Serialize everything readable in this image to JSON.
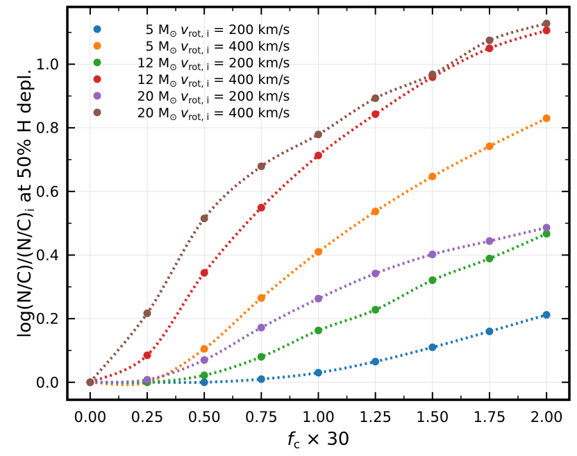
{
  "chart_data": {
    "type": "scatter",
    "x": [
      0.0,
      0.25,
      0.5,
      0.75,
      1.0,
      1.25,
      1.5,
      1.75,
      2.0
    ],
    "xlabel": {
      "base": "f",
      "sub": "c",
      "suffix": "× 30"
    },
    "ylabel": {
      "main": "log(N/C)/(N/C)",
      "sub": "i",
      "suffix": " at 50% H depl."
    },
    "xlim": [
      -0.1,
      2.1
    ],
    "ylim": [
      -0.055,
      1.18
    ],
    "xticks": [
      "0.00",
      "0.25",
      "0.50",
      "0.75",
      "1.00",
      "1.25",
      "1.50",
      "1.75",
      "2.00"
    ],
    "yticks": [
      "0.0",
      "0.2",
      "0.4",
      "0.6",
      "0.8",
      "1.0"
    ],
    "grid": true,
    "legend_position": "top-left",
    "legend_suffix": {
      "sun": "⊙",
      "v": "v",
      "rot": "rot, i",
      "eq": "="
    },
    "series": [
      {
        "name": "5 M⊙ vrot,i = 200 km/s",
        "mass": "5",
        "msun": "M",
        "vel": "200 km/s",
        "color": "#1f77b4",
        "values": [
          0.0,
          0.0,
          0.0,
          0.01,
          0.03,
          0.065,
          0.11,
          0.16,
          0.212
        ]
      },
      {
        "name": "5 M⊙ vrot,i = 400 km/s",
        "mass": "5",
        "msun": "M",
        "vel": "400 km/s",
        "color": "#ff7f0e",
        "values": [
          0.0,
          0.0,
          0.105,
          0.265,
          0.41,
          0.537,
          0.647,
          0.742,
          0.83
        ]
      },
      {
        "name": "12 M⊙ vrot,i = 200 km/s",
        "mass": "12",
        "msun": "M",
        "vel": "200 km/s",
        "color": "#2ca02c",
        "values": [
          0.0,
          0.0,
          0.022,
          0.08,
          0.163,
          0.228,
          0.321,
          0.389,
          0.467
        ]
      },
      {
        "name": "12 M⊙ vrot,i = 400 km/s",
        "mass": "12",
        "msun": "M",
        "vel": "400 km/s",
        "color": "#d62728",
        "values": [
          0.0,
          0.085,
          0.344,
          0.549,
          0.713,
          0.843,
          0.959,
          1.05,
          1.106
        ]
      },
      {
        "name": "20 M⊙ vrot,i = 200 km/s",
        "mass": "20",
        "msun": "M",
        "vel": "200 km/s",
        "color": "#9467bd",
        "values": [
          0.0,
          0.008,
          0.07,
          0.172,
          0.263,
          0.342,
          0.402,
          0.444,
          0.486
        ]
      },
      {
        "name": "20 M⊙ vrot,i = 400 km/s",
        "mass": "20",
        "msun": "M",
        "vel": "400 km/s",
        "color": "#8c564b",
        "values": [
          0.0,
          0.217,
          0.515,
          0.679,
          0.779,
          0.893,
          0.968,
          1.075,
          1.128
        ]
      }
    ]
  }
}
